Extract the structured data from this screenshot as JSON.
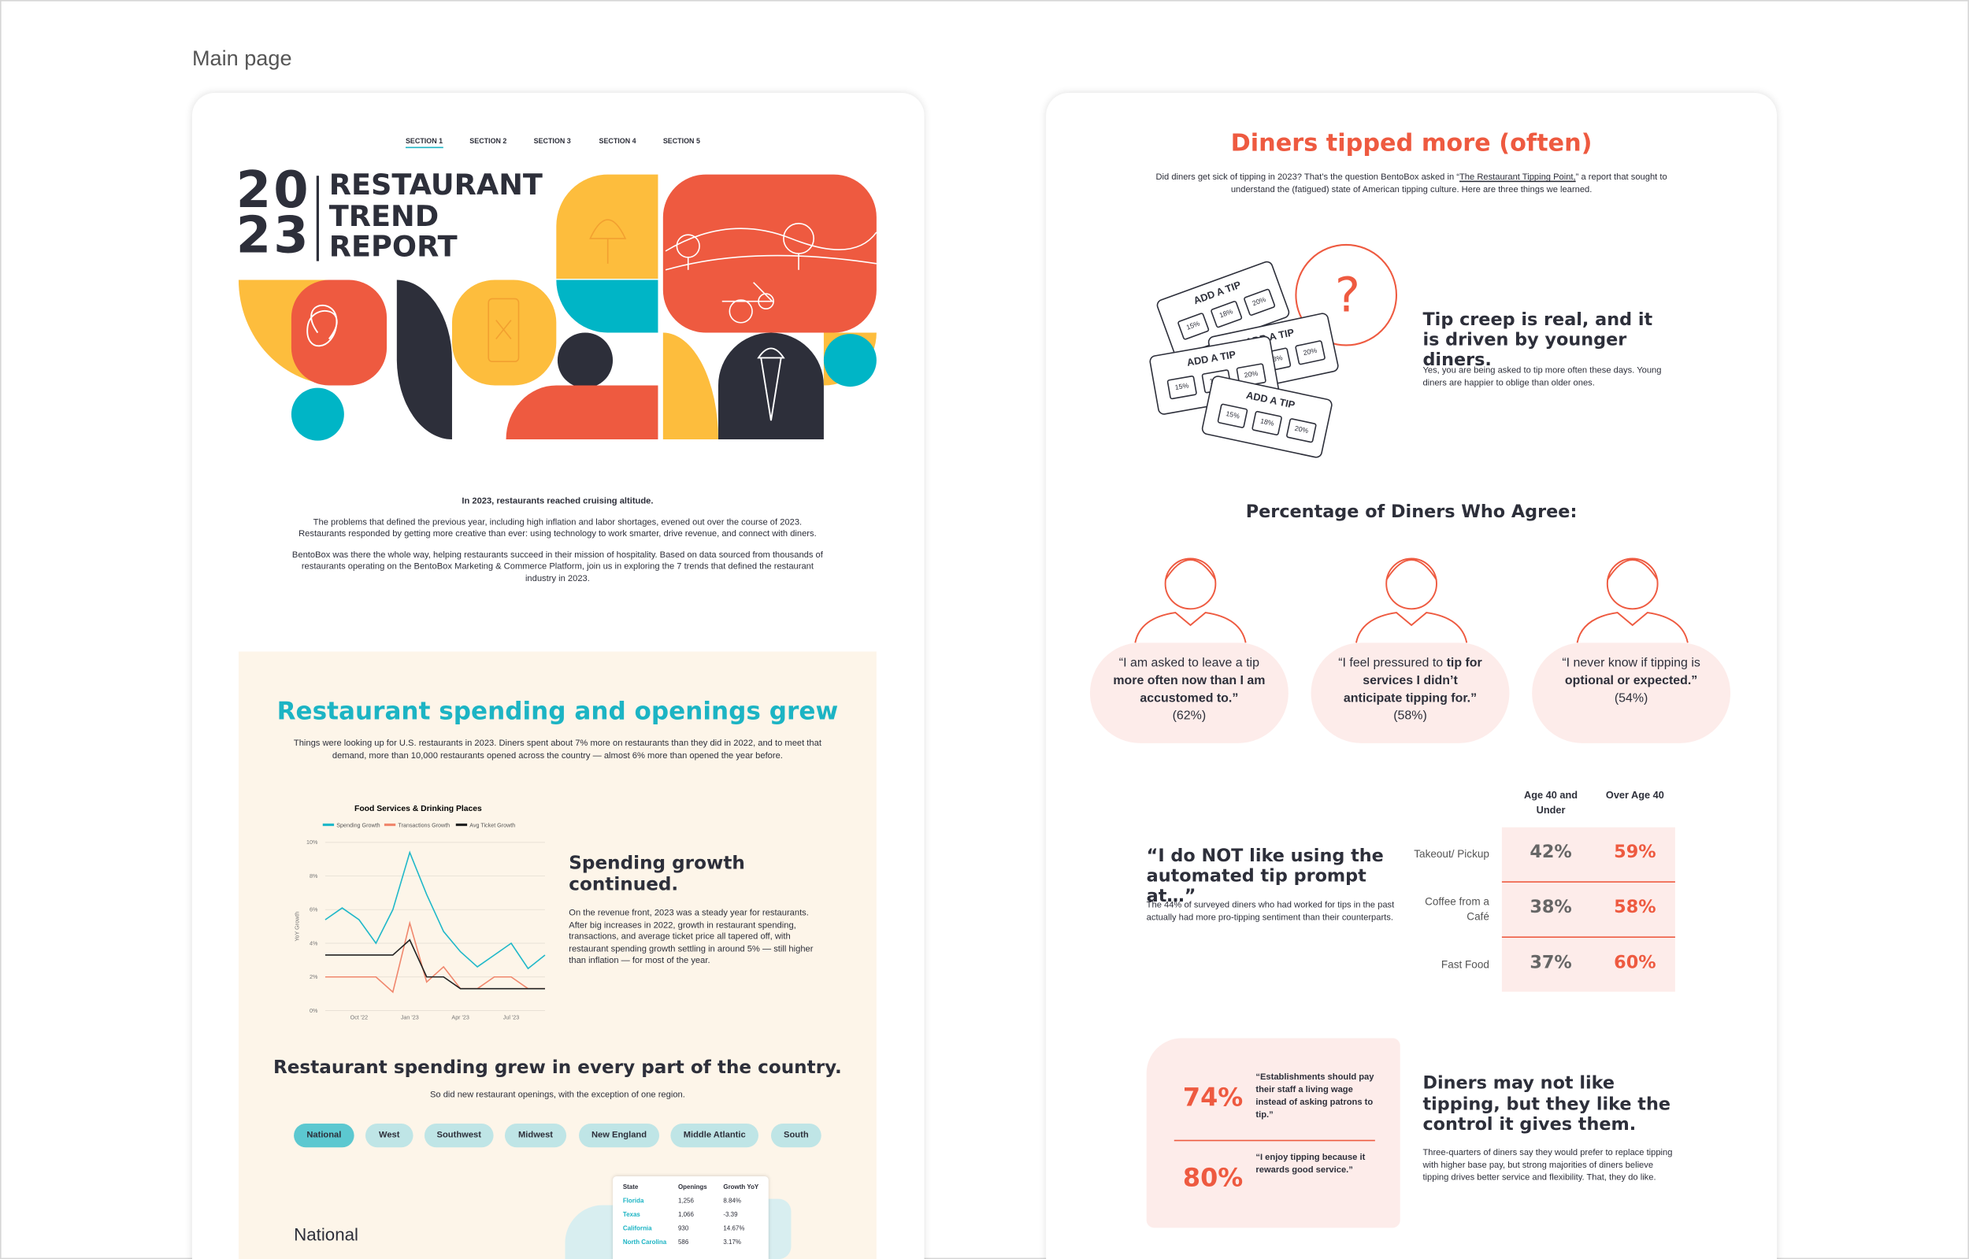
{
  "page_label": "Main page",
  "left": {
    "nav": [
      "SECTION 1",
      "SECTION 2",
      "SECTION 3",
      "SECTION 4",
      "SECTION 5"
    ],
    "hero": {
      "year_top": "20",
      "year_bottom": "23",
      "title_lines": [
        "RESTAURANT",
        "TREND",
        "REPORT"
      ]
    },
    "intro": {
      "lead": "In 2023, restaurants reached cruising altitude.",
      "paragraphs": [
        "The problems that defined the previous year, including high inflation and labor shortages, evened out over the course of 2023. Restaurants responded by getting more creative than ever: using technology to work smarter, drive revenue, and connect with diners.",
        "BentoBox was there the whole way, helping restaurants succeed in their mission of hospitality. Based on data sourced from thousands of restaurants operating on the BentoBox Marketing & Commerce Platform, join us in exploring the 7 trends that defined the restaurant industry in 2023."
      ]
    },
    "spending": {
      "title": "Restaurant spending and openings grew",
      "body": "Things were looking up for U.S. restaurants in 2023. Diners spent about 7% more on restaurants than they did in 2022, and to meet that demand, more than 10,000 restaurants opened across the country — almost 6% more than opened the year before.",
      "side_title": "Spending growth continued.",
      "side_body": "On the revenue front, 2023 was a steady year for restaurants. After big increases in 2022, growth in restaurant spending, transactions, and average ticket price all tapered off, with restaurant spending growth settling in around 5% — still higher than inflation — for most of the year.",
      "region_title": "Restaurant spending grew in every part of the country.",
      "region_sub": "So did new restaurant openings, with the exception of one region.",
      "tabs": [
        "National",
        "West",
        "Southwest",
        "Midwest",
        "New England",
        "Middle Atlantic",
        "South"
      ],
      "region_heading": "National",
      "table": {
        "header": [
          "State",
          "Openings",
          "Growth YoY"
        ],
        "rows": [
          [
            "Florida",
            "1,256",
            "8.84%"
          ],
          [
            "Texas",
            "1,066",
            "-3.39"
          ],
          [
            "California",
            "930",
            "14.67%"
          ],
          [
            "North Carolina",
            "586",
            "3.17%"
          ]
        ]
      }
    }
  },
  "chart_data": {
    "type": "line",
    "title": "Food Services & Drinking Places",
    "y_label": "YoY Growth",
    "categories": [
      null,
      null,
      "Oct '22",
      null,
      null,
      "Jan '23",
      null,
      null,
      "Apr '23",
      null,
      null,
      "Jul '23",
      null,
      null
    ],
    "series": [
      {
        "name": "Spending Growth",
        "color": "#1fb8c9",
        "values": [
          5.4,
          6.1,
          5.4,
          4.0,
          6.0,
          9.4,
          6.9,
          4.7,
          3.5,
          2.6,
          3.3,
          4.0,
          2.5,
          3.3
        ]
      },
      {
        "name": "Transactions Growth",
        "color": "#f0876d",
        "values": [
          2.0,
          2.0,
          2.0,
          2.0,
          1.1,
          5.2,
          1.7,
          2.6,
          1.3,
          1.3,
          2.0,
          2.0,
          1.3,
          1.3
        ]
      },
      {
        "name": "Avg Ticket Growth",
        "color": "#222222",
        "values": [
          3.3,
          3.3,
          3.3,
          3.3,
          3.3,
          4.2,
          2.0,
          2.0,
          1.3,
          1.3,
          1.3,
          1.3,
          1.3,
          1.3
        ]
      }
    ],
    "ylim": [
      0,
      10
    ],
    "yticks": [
      {
        "value": 0,
        "label": "0%"
      },
      {
        "value": 2,
        "label": "2%"
      },
      {
        "value": 4,
        "label": "4%"
      },
      {
        "value": 6,
        "label": "6%"
      },
      {
        "value": 8,
        "label": "8%"
      },
      {
        "value": 10,
        "label": "10%"
      }
    ],
    "grid": true
  },
  "right": {
    "title": "Diners tipped more (often)",
    "intro_before": "Did diners get sick of tipping in 2023? That’s the question BentoBox asked in “",
    "intro_link": "The Restaurant Tipping Point,",
    "intro_after": "” a report that sought to understand the (fatigued) state of American tipping culture. Here are three things we learned.",
    "tip_card": {
      "heading": "ADD A TIP",
      "options": [
        "15%",
        "18%",
        "20%"
      ]
    },
    "question_mark": "?",
    "creep_title": "Tip creep is real, and it is driven by younger diners.",
    "creep_body": "Yes, you are being asked to tip more often these days. Young diners are happier to oblige than older ones.",
    "agree_title": "Percentage of Diners Who Agree:",
    "quotes": [
      {
        "pre": "“I am asked to leave a tip ",
        "bold": "more often now than I am accustomed to.”",
        "pct": "(62%)"
      },
      {
        "pre": "“I feel pressured to ",
        "bold": "tip for services I didn’t anticipate tipping for.”",
        "pct": "(58%)"
      },
      {
        "pre": "“I never know if tipping is ",
        "bold": "optional or expected.”",
        "pct": "(54%)"
      }
    ],
    "prompt_title": "“I do NOT like using the automated tip prompt at…”",
    "prompt_body": "The 44% of surveyed diners who had worked for tips in the past actually had more pro-tipping sentiment than their counterparts.",
    "age_table": {
      "header": [
        "Age 40 and Under",
        "Over Age 40"
      ],
      "rows": [
        [
          "Takeout/ Pickup",
          "42%",
          "59%"
        ],
        [
          "Coffee from a Café",
          "38%",
          "58%"
        ],
        [
          "Fast Food",
          "37%",
          "60%"
        ]
      ]
    },
    "stats": [
      {
        "value": "74%",
        "text": "“Establishments should pay their staff a living wage instead of asking patrons to tip.”"
      },
      {
        "value": "80%",
        "text": "“I enjoy tipping because it rewards good service.”"
      }
    ],
    "control_title": "Diners may not like tipping, but they like the control it gives them.",
    "control_body": "Three-quarters of diners say they would prefer to replace tipping with higher base pay, but strong majorities of diners believe tipping drives better service and flexibility. That, they do like."
  }
}
